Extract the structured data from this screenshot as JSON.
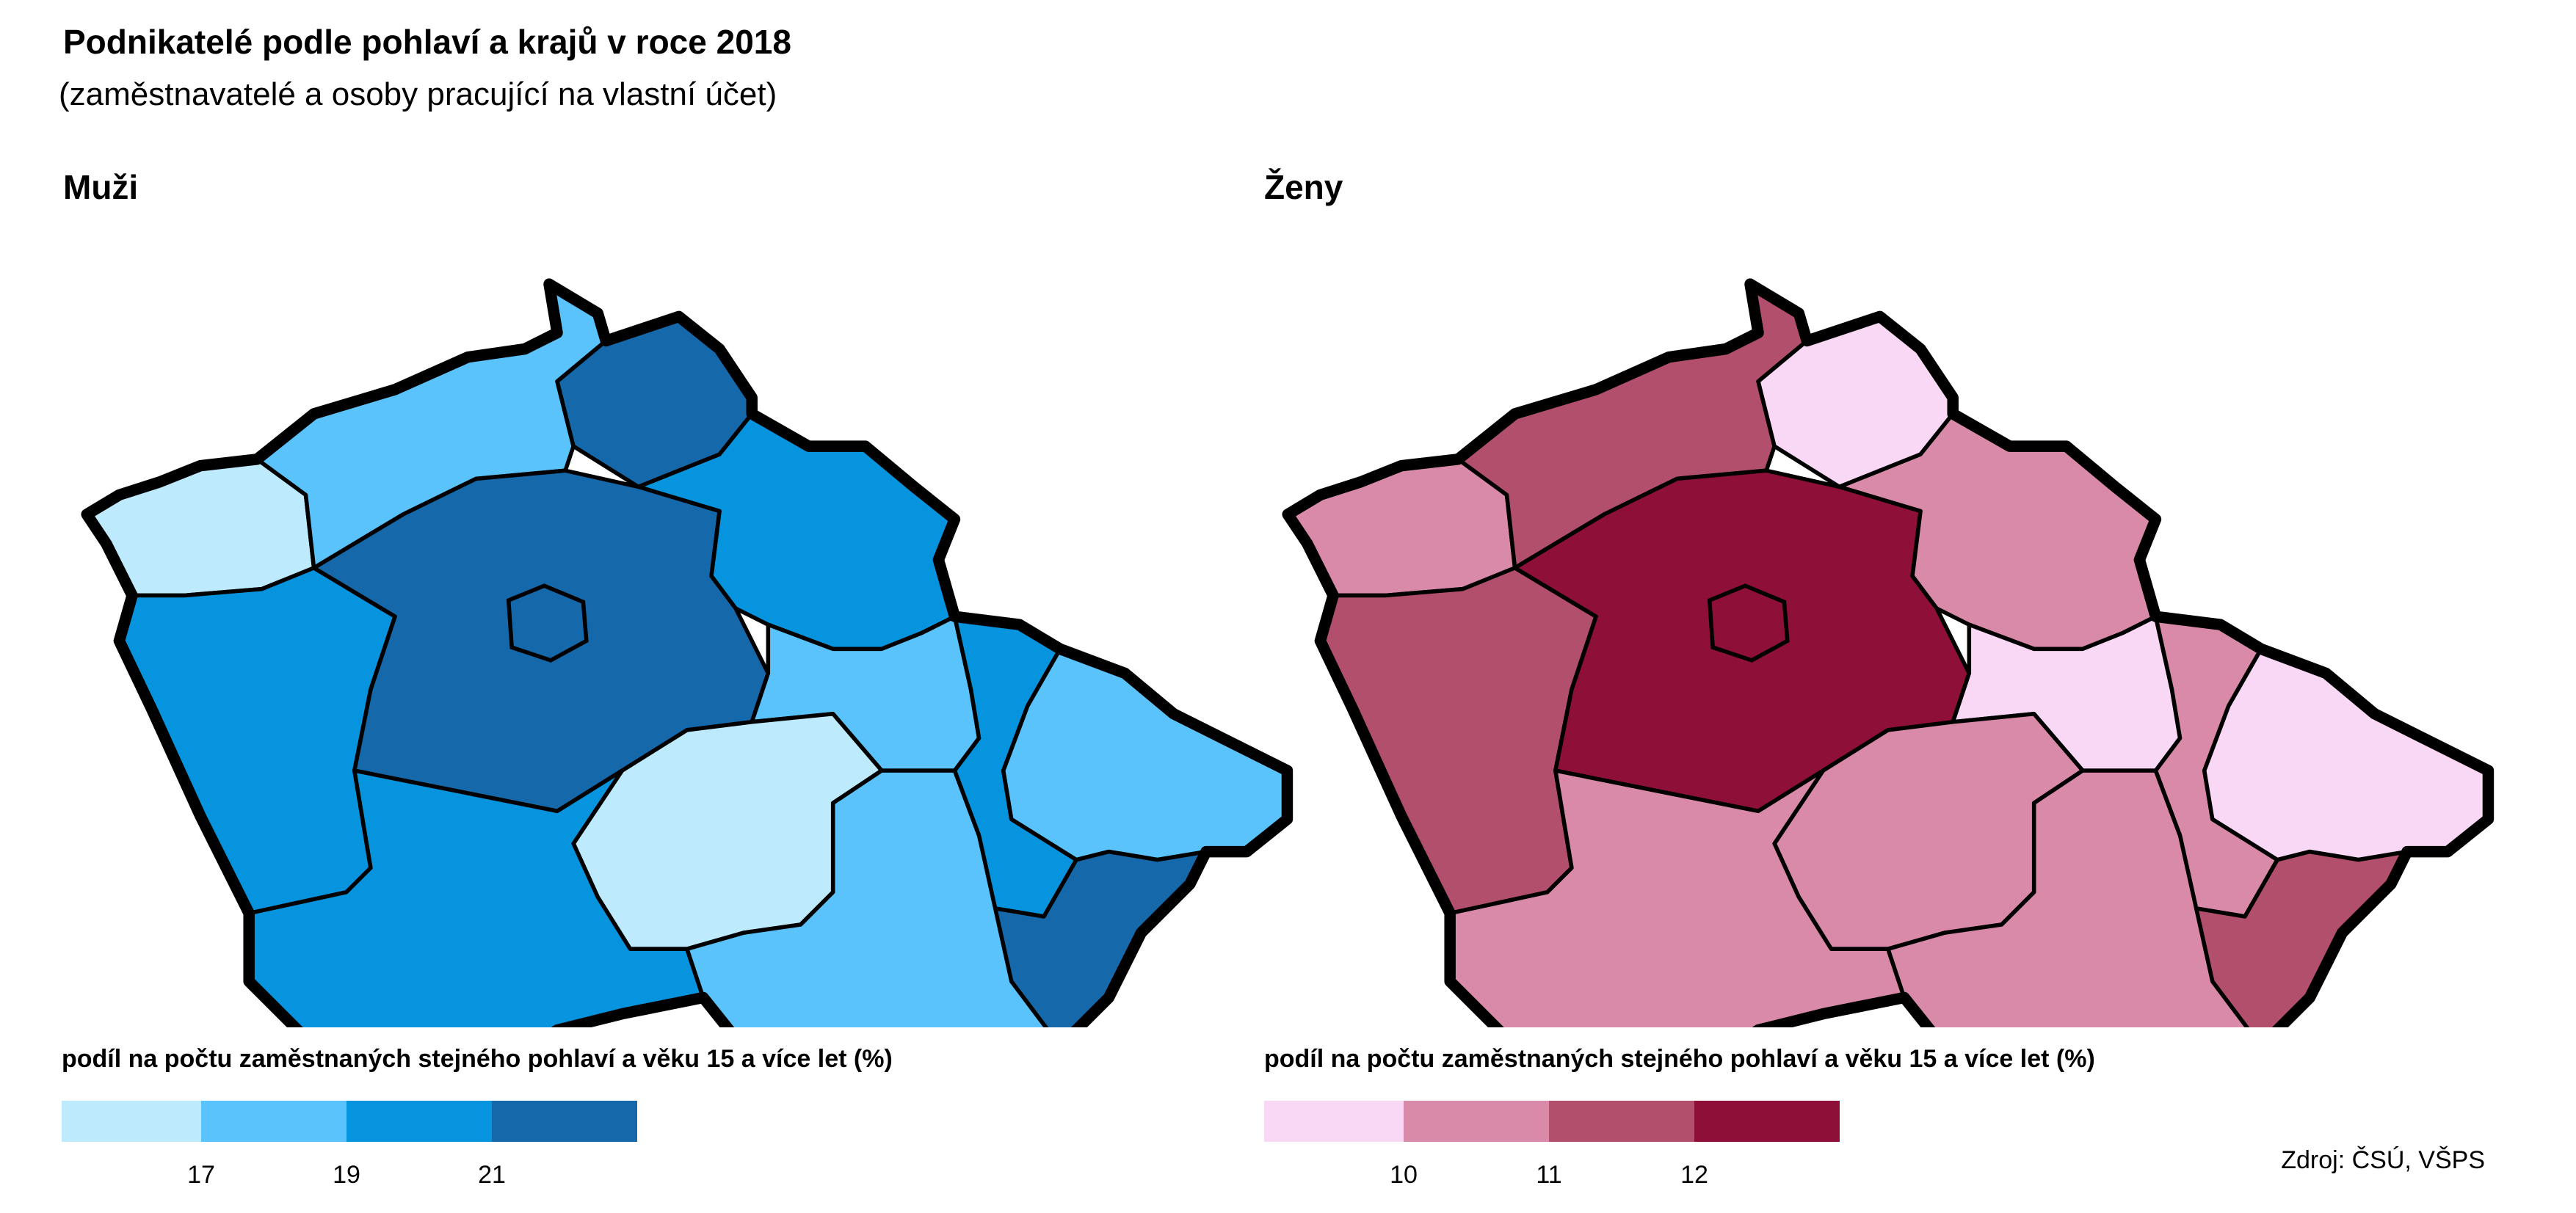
{
  "title": "Podnikatelé podle pohlaví a krajů v roce 2018",
  "subtitle": "(zaměstnavatelé a osoby pracující na vlastní účet)",
  "source": "Zdroj: ČSÚ, VŠPS",
  "panels": [
    {
      "title": "Muži",
      "legend_title": "podíl na počtu zaměstnaných stejného pohlaví a věku 15 a více let (%)",
      "legend_colors": [
        "#bdeafd",
        "#5bc3fb",
        "#0794df",
        "#1569ab"
      ],
      "legend_ticks": [
        "17",
        "19",
        "21"
      ],
      "region_classes": {
        "karlovarsky": 0,
        "ustecky": 1,
        "liberecky": 3,
        "kralovehradecky": 2,
        "plzensky": 2,
        "stredocesky": 3,
        "praha": 3,
        "pardubicky": 1,
        "vysocina": 0,
        "jihocesky": 2,
        "jihomoravsky": 1,
        "olomoucky": 2,
        "moravskoslezsky": 1,
        "zlinsky": 3
      }
    },
    {
      "title": "Ženy",
      "legend_title": "podíl na počtu zaměstnaných stejného pohlaví a věku 15 a více let (%)",
      "legend_colors": [
        "#f8d8f4",
        "#d88aa8",
        "#b24f6c",
        "#8e1038"
      ],
      "legend_ticks": [
        "10",
        "11",
        "12"
      ],
      "region_classes": {
        "karlovarsky": 1,
        "ustecky": 2,
        "liberecky": 0,
        "kralovehradecky": 1,
        "plzensky": 2,
        "stredocesky": 3,
        "praha": 3,
        "pardubicky": 0,
        "vysocina": 1,
        "jihocesky": 1,
        "jihomoravsky": 1,
        "olomoucky": 1,
        "moravskoslezsky": 0,
        "zlinsky": 2
      }
    }
  ]
}
